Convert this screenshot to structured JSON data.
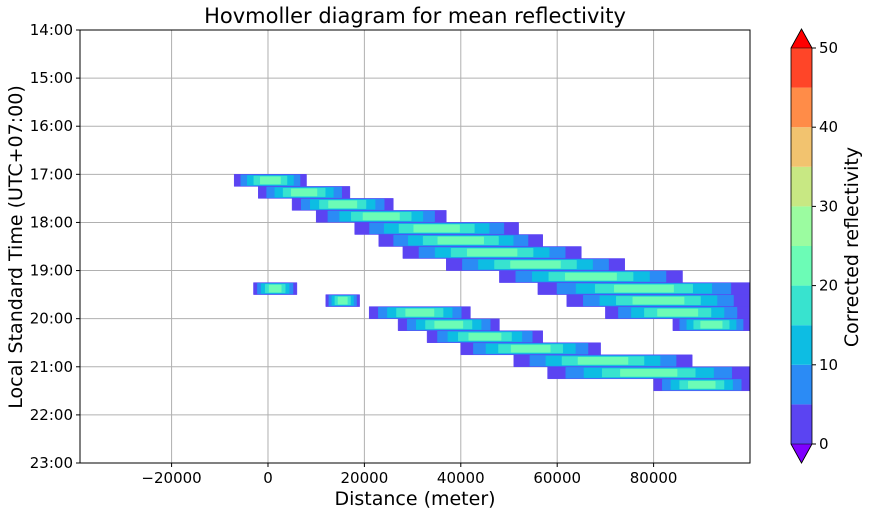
{
  "chart_data": {
    "type": "heatmap",
    "title": "Hovmoller diagram for mean reflectivity",
    "xlabel": "Distance (meter)",
    "ylabel": "Local Standard Time (UTC+07:00)",
    "xlim": [
      -39000,
      100000
    ],
    "x_ticks": [
      -20000,
      0,
      20000,
      40000,
      60000,
      80000
    ],
    "x_tick_labels": [
      "−20000",
      "0",
      "20000",
      "40000",
      "60000",
      "80000"
    ],
    "y_time_range": [
      "14:00",
      "23:00"
    ],
    "y_ticks": [
      "14:00",
      "15:00",
      "16:00",
      "17:00",
      "18:00",
      "19:00",
      "20:00",
      "21:00",
      "22:00",
      "23:00"
    ],
    "grid": true,
    "colorbar": {
      "label": "Corrected reflectivity",
      "levels": [
        0,
        5,
        10,
        15,
        20,
        25,
        30,
        35,
        40,
        45,
        50
      ],
      "tick_labels": [
        "0",
        "10",
        "20",
        "30",
        "40",
        "50"
      ],
      "colors": [
        "#5b44f2",
        "#2b8bf5",
        "#0dbde3",
        "#38e3cf",
        "#6cfcb6",
        "#9bfca0",
        "#c8e883",
        "#f2c36f",
        "#ff8c48",
        "#ff4528"
      ],
      "under_color": "#7f00ff",
      "over_color": "#ff0000",
      "extend": "both"
    },
    "bands": [
      {
        "segments": [
          {
            "t": "17:00",
            "x0": -7000,
            "x1": 8000
          },
          {
            "t": "17:15",
            "x0": -2000,
            "x1": 17000
          },
          {
            "t": "17:30",
            "x0": 5000,
            "x1": 26000
          },
          {
            "t": "17:45",
            "x0": 10000,
            "x1": 37000
          },
          {
            "t": "18:00",
            "x0": 18000,
            "x1": 52000
          },
          {
            "t": "18:15",
            "x0": 23000,
            "x1": 57000
          },
          {
            "t": "18:30",
            "x0": 28000,
            "x1": 65000
          },
          {
            "t": "18:45",
            "x0": 37000,
            "x1": 74000
          },
          {
            "t": "19:00",
            "x0": 48000,
            "x1": 86000
          },
          {
            "t": "19:15",
            "x0": 56000,
            "x1": 100000
          },
          {
            "t": "19:30",
            "x0": 62000,
            "x1": 100000
          },
          {
            "t": "19:45",
            "x0": 70000,
            "x1": 100000
          },
          {
            "t": "20:00",
            "x0": 84000,
            "x1": 100000
          }
        ],
        "level_ranges": [
          [
            0,
            5
          ],
          [
            5,
            10
          ],
          [
            10,
            15
          ],
          [
            15,
            20
          ],
          [
            20,
            25
          ]
        ]
      },
      {
        "segments": [
          {
            "t": "19:15",
            "x0": -3000,
            "x1": 6000
          },
          {
            "t": "19:30",
            "x0": 12000,
            "x1": 19000
          },
          {
            "t": "19:45",
            "x0": 21000,
            "x1": 42000
          },
          {
            "t": "20:00",
            "x0": 27000,
            "x1": 48000
          },
          {
            "t": "20:15",
            "x0": 33000,
            "x1": 57000
          },
          {
            "t": "20:30",
            "x0": 40000,
            "x1": 69000
          },
          {
            "t": "20:45",
            "x0": 51000,
            "x1": 88000
          },
          {
            "t": "21:00",
            "x0": 58000,
            "x1": 100000
          },
          {
            "t": "21:15",
            "x0": 80000,
            "x1": 100000
          }
        ],
        "level_ranges": [
          [
            0,
            5
          ],
          [
            5,
            10
          ],
          [
            10,
            15
          ],
          [
            15,
            20
          ],
          [
            20,
            25
          ]
        ]
      }
    ]
  }
}
